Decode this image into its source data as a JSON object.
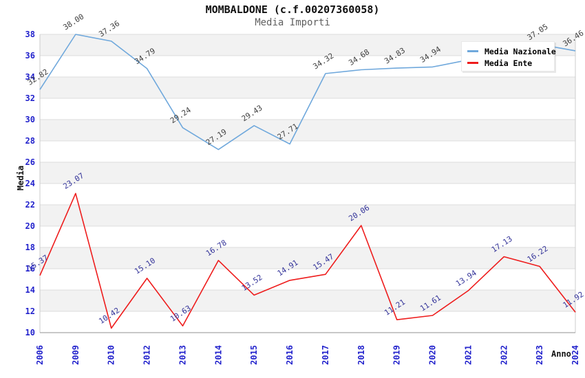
{
  "header": {
    "title": "MOMBALDONE (c.f.00207360058)",
    "subtitle": "Media Importi"
  },
  "axes": {
    "x_title": "Anno",
    "y_title": "Media"
  },
  "legend": {
    "items": [
      {
        "label": "Media Nazionale",
        "color": "#6fa8dc"
      },
      {
        "label": "Media Ente",
        "color": "#ee1c1c"
      }
    ]
  },
  "colors": {
    "axis_tick_text": "#2222cc",
    "gridline": "#dcdcdc",
    "band_fill": "#f2f2f2",
    "plot_border": "#cccccc",
    "axis_line": "#a6a6a6",
    "nazionale_line": "#6fa8dc",
    "nazionale_label_text": "#404040",
    "ente_line": "#ee1c1c",
    "ente_label_text": "#333399"
  },
  "chart_data": {
    "type": "line",
    "title": "MOMBALDONE (c.f.00207360058)",
    "subtitle": "Media Importi",
    "xlabel": "Anno",
    "ylabel": "Media",
    "ylim": [
      10,
      38
    ],
    "y_tick_step": 2,
    "y_ticks": [
      10,
      12,
      14,
      16,
      18,
      20,
      22,
      24,
      26,
      28,
      30,
      32,
      34,
      36,
      38
    ],
    "grid": "horizontal-bands",
    "legend_position": "top-right",
    "categories": [
      "2006",
      "2009",
      "2010",
      "2012",
      "2013",
      "2014",
      "2015",
      "2016",
      "2017",
      "2018",
      "2019",
      "2020",
      "2021",
      "2022",
      "2023",
      "2024"
    ],
    "series": [
      {
        "name": "Media Nazionale",
        "color": "#6fa8dc",
        "label_color": "#404040",
        "values": [
          32.82,
          38.0,
          37.36,
          34.79,
          29.24,
          27.19,
          29.43,
          27.71,
          34.32,
          34.68,
          34.83,
          34.94,
          35.6,
          36.3,
          37.05,
          36.46
        ],
        "labels": [
          "32.82",
          "38.00",
          "37.36",
          "34.79",
          "29.24",
          "27.19",
          "29.43",
          "27.71",
          "34.32",
          "34.68",
          "34.83",
          "34.94",
          "",
          "",
          "37.05",
          "36.46"
        ]
      },
      {
        "name": "Media Ente",
        "color": "#ee1c1c",
        "label_color": "#333399",
        "values": [
          15.37,
          23.07,
          10.42,
          15.1,
          10.63,
          16.78,
          13.52,
          14.91,
          15.47,
          20.06,
          11.21,
          11.61,
          13.94,
          17.13,
          16.22,
          11.92
        ],
        "labels": [
          "15.37",
          "23.07",
          "10.42",
          "15.10",
          "10.63",
          "16.78",
          "13.52",
          "14.91",
          "15.47",
          "20.06",
          "11.21",
          "11.61",
          "13.94",
          "17.13",
          "16.22",
          "11.92"
        ]
      }
    ]
  }
}
